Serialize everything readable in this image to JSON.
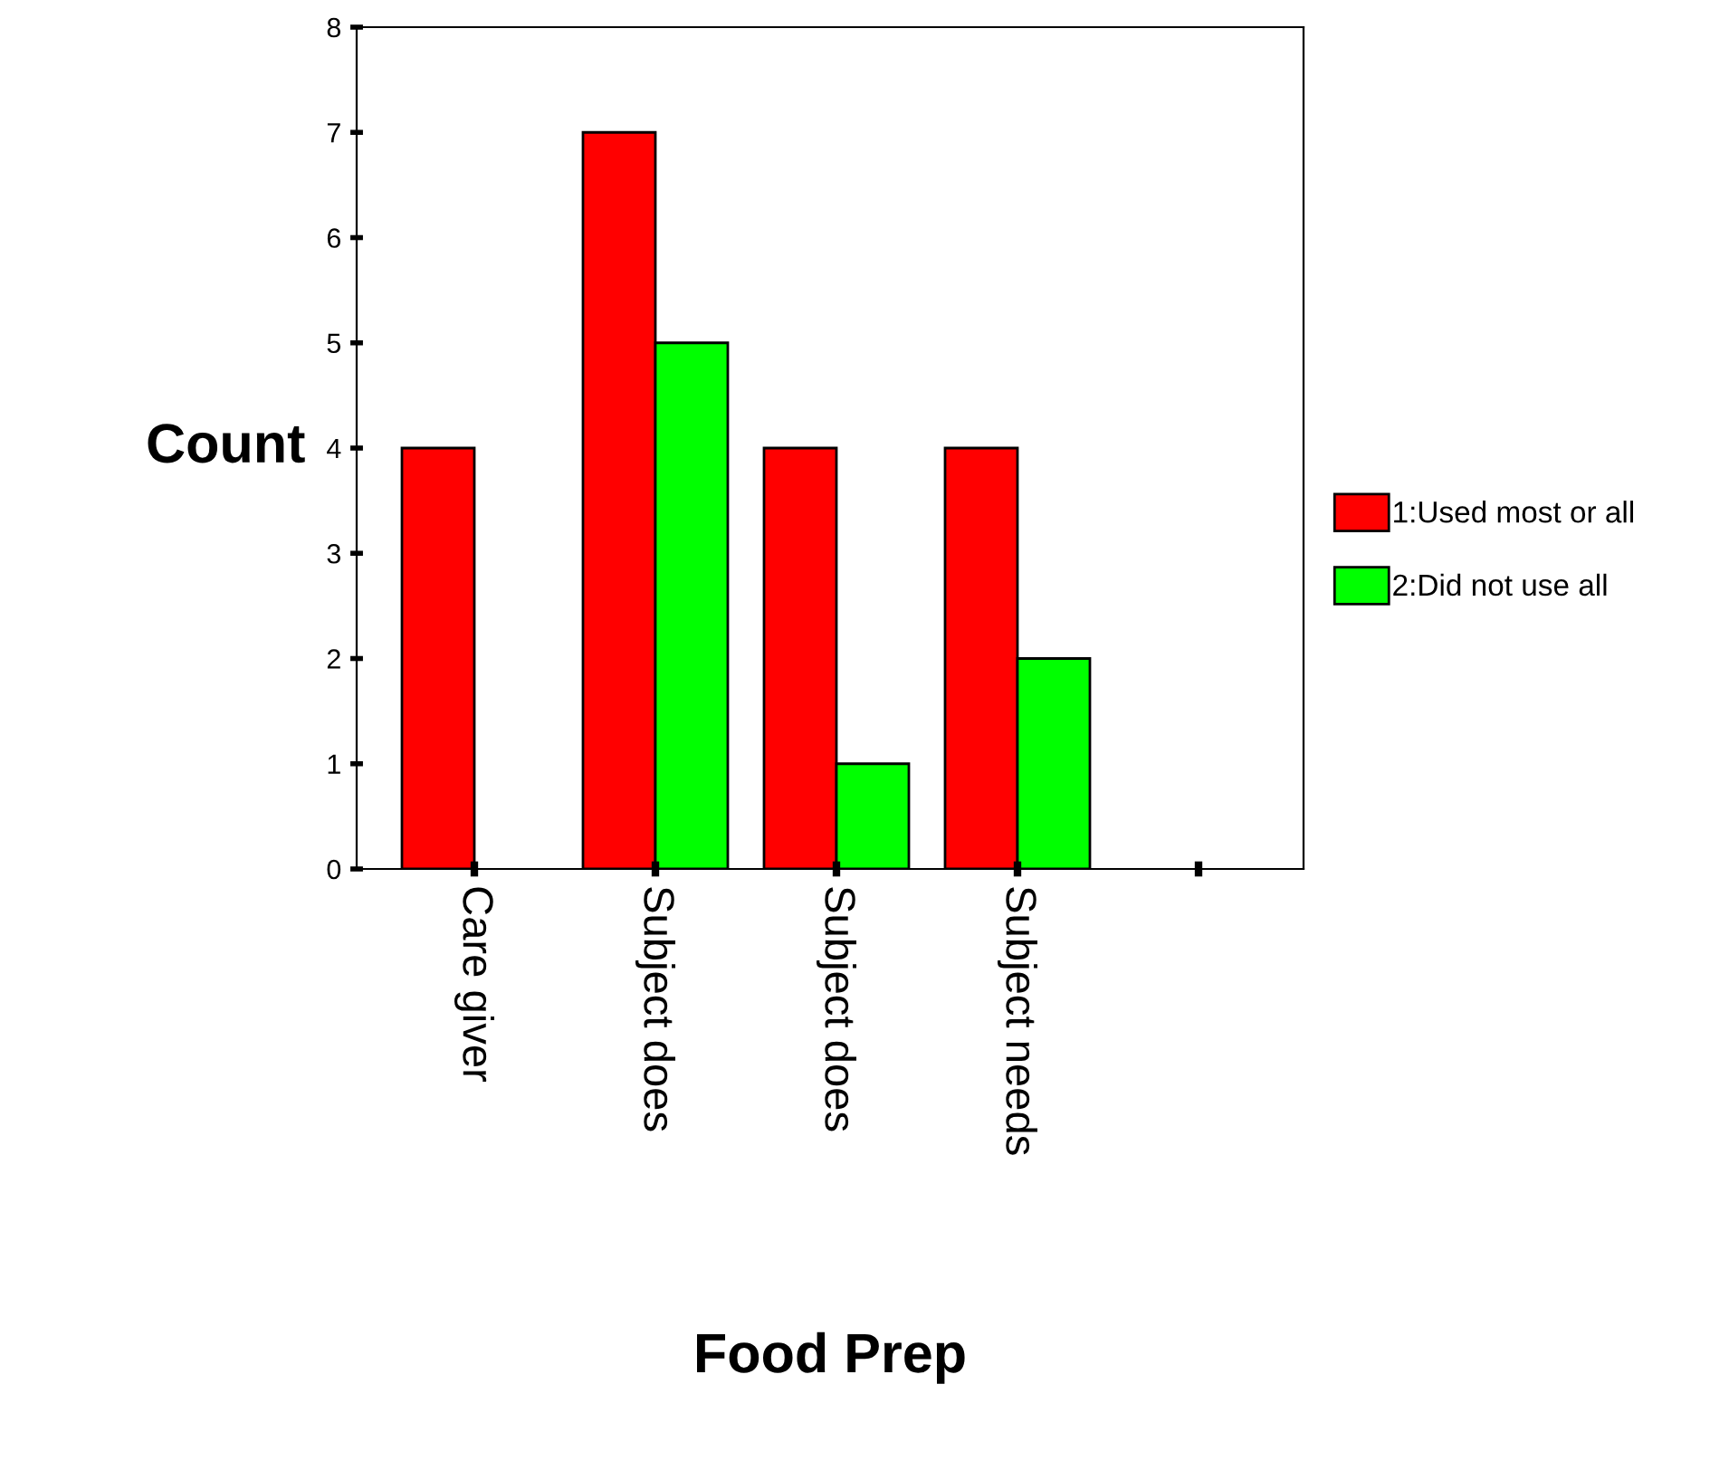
{
  "chart_data": {
    "type": "bar",
    "xlabel": "Food Prep",
    "ylabel": "Count",
    "categories": [
      "Care giver",
      "Subject does",
      "Subject does",
      "Subject needs",
      null
    ],
    "series": [
      {
        "name": "1:Used most or all",
        "color": "#ff0000",
        "values": [
          4,
          7,
          4,
          4,
          null
        ]
      },
      {
        "name": "2:Did not use all",
        "color": "#00ff00",
        "values": [
          null,
          5,
          1,
          2,
          null
        ]
      }
    ],
    "ylim": [
      0,
      8
    ],
    "yticks": [
      0,
      1,
      2,
      3,
      4,
      5,
      6,
      7,
      8
    ],
    "grid": false,
    "legend": "right"
  }
}
